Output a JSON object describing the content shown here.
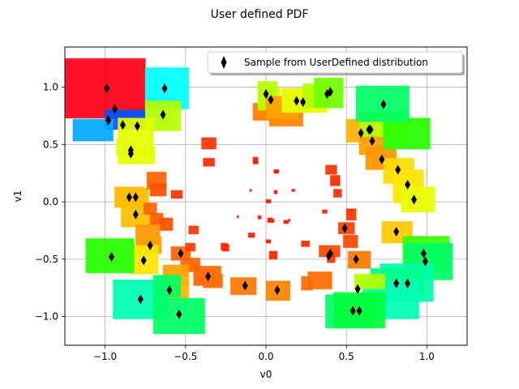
{
  "chart_data": {
    "type": "scatter",
    "title": "User defined PDF",
    "xlabel": "v0",
    "ylabel": "v1",
    "xlim": [
      -1.25,
      1.25
    ],
    "ylim": [
      -1.25,
      1.35
    ],
    "xticks": [
      -1.0,
      -0.5,
      0.0,
      0.5,
      1.0
    ],
    "yticks": [
      -1.0,
      -0.5,
      0.0,
      0.5,
      1.0
    ],
    "xtick_labels": [
      "−1.0",
      "−0.5",
      "0.0",
      "0.5",
      "1.0"
    ],
    "ytick_labels": [
      "−1.0",
      "−0.5",
      "0.0",
      "0.5",
      "1.0"
    ],
    "grid": true,
    "legend": {
      "placement": "top-right",
      "entries": [
        "Sample from UserDefined distribution"
      ]
    },
    "marker": {
      "shape": "thin-diamond",
      "color": "#000000"
    },
    "points": [
      {
        "x": -0.99,
        "y": 0.99
      },
      {
        "x": -0.94,
        "y": 0.81
      },
      {
        "x": -0.98,
        "y": 0.71
      },
      {
        "x": -0.89,
        "y": 0.67
      },
      {
        "x": -0.8,
        "y": 0.66
      },
      {
        "x": -0.84,
        "y": 0.45
      },
      {
        "x": -0.84,
        "y": 0.42
      },
      {
        "x": -0.63,
        "y": 0.99
      },
      {
        "x": -0.64,
        "y": 0.76
      },
      {
        "x": -0.85,
        "y": 0.04
      },
      {
        "x": -0.81,
        "y": 0.04
      },
      {
        "x": -0.81,
        "y": -0.11
      },
      {
        "x": -0.72,
        "y": -0.38
      },
      {
        "x": -0.76,
        "y": -0.51
      },
      {
        "x": -0.53,
        "y": -0.45
      },
      {
        "x": -0.6,
        "y": -0.77
      },
      {
        "x": -0.78,
        "y": -0.85
      },
      {
        "x": -0.54,
        "y": -0.98
      },
      {
        "x": -0.36,
        "y": -0.65
      },
      {
        "x": -0.13,
        "y": -0.73
      },
      {
        "x": 0.07,
        "y": -0.77
      },
      {
        "x": -0.96,
        "y": -0.48
      },
      {
        "x": 0.4,
        "y": -0.45
      },
      {
        "x": 0.39,
        "y": -0.47
      },
      {
        "x": 0.49,
        "y": -0.23
      },
      {
        "x": 0.56,
        "y": -0.5
      },
      {
        "x": 0.57,
        "y": -0.76
      },
      {
        "x": 0.54,
        "y": -0.95
      },
      {
        "x": 0.58,
        "y": -0.95
      },
      {
        "x": 0.81,
        "y": -0.71
      },
      {
        "x": 0.88,
        "y": -0.71
      },
      {
        "x": 0.98,
        "y": -0.45
      },
      {
        "x": 0.99,
        "y": -0.52
      },
      {
        "x": 0.81,
        "y": -0.26
      },
      {
        "x": 0.92,
        "y": 0.02
      },
      {
        "x": 0.88,
        "y": 0.15
      },
      {
        "x": 0.82,
        "y": 0.28
      },
      {
        "x": 0.72,
        "y": 0.37
      },
      {
        "x": 0.66,
        "y": 0.53
      },
      {
        "x": 0.59,
        "y": 0.6
      },
      {
        "x": 0.64,
        "y": 0.63
      },
      {
        "x": 0.65,
        "y": 0.63
      },
      {
        "x": 0.73,
        "y": 0.85
      },
      {
        "x": 0.0,
        "y": 0.94
      },
      {
        "x": 0.03,
        "y": 0.89
      },
      {
        "x": 0.19,
        "y": 0.88
      },
      {
        "x": 0.23,
        "y": 0.87
      },
      {
        "x": 0.38,
        "y": 0.94
      },
      {
        "x": 0.4,
        "y": 0.96
      }
    ],
    "patches": [
      {
        "x0": -1.25,
        "x1": -1.0,
        "y0": 0.73,
        "y1": 1.25,
        "color": "#ff0015"
      },
      {
        "x0": -1.0,
        "x1": -0.75,
        "y0": 0.73,
        "y1": 1.25,
        "color": "#ff0015"
      },
      {
        "x0": -1.0,
        "x1": -0.75,
        "y0": 0.63,
        "y1": 0.8,
        "color": "#0052ff"
      },
      {
        "x0": -1.2,
        "x1": -0.95,
        "y0": 0.53,
        "y1": 0.72,
        "color": "#00aaff"
      },
      {
        "x0": -0.75,
        "x1": -0.48,
        "y0": 0.81,
        "y1": 1.17,
        "color": "#00ffff"
      },
      {
        "x0": -0.75,
        "x1": -0.53,
        "y0": 0.62,
        "y1": 0.88,
        "color": "#b4ff00"
      },
      {
        "x0": -0.92,
        "x1": -0.7,
        "y0": 0.55,
        "y1": 0.73,
        "color": "#e6ff00"
      },
      {
        "x0": -0.93,
        "x1": -0.7,
        "y0": 0.4,
        "y1": 0.55,
        "color": "#e6ff00"
      },
      {
        "x0": -0.92,
        "x1": -0.69,
        "y0": 0.33,
        "y1": 0.48,
        "color": "#e6ff00"
      },
      {
        "x0": -0.94,
        "x1": -0.76,
        "y0": -0.05,
        "y1": 0.13,
        "color": "#ffb400"
      },
      {
        "x0": -0.92,
        "x1": -0.73,
        "y0": -0.05,
        "y1": 0.12,
        "color": "#ffbe00"
      },
      {
        "x0": -0.9,
        "x1": -0.72,
        "y0": -0.22,
        "y1": -0.02,
        "color": "#ffbe00"
      },
      {
        "x0": -0.74,
        "x1": -0.62,
        "y0": 0.11,
        "y1": 0.26,
        "color": "#ff6400"
      },
      {
        "x0": -0.72,
        "x1": -0.62,
        "y0": 0.05,
        "y1": 0.16,
        "color": "#ff5000"
      },
      {
        "x0": -0.59,
        "x1": -0.52,
        "y0": 0.03,
        "y1": 0.1,
        "color": "#ff3200"
      },
      {
        "x0": -0.76,
        "x1": -0.68,
        "y0": -0.11,
        "y1": -0.01,
        "color": "#ff6400"
      },
      {
        "x0": -0.72,
        "x1": -0.64,
        "y0": -0.2,
        "y1": -0.1,
        "color": "#ff5a00"
      },
      {
        "x0": -0.66,
        "x1": -0.58,
        "y0": -0.25,
        "y1": -0.14,
        "color": "#ff5000"
      },
      {
        "x0": -0.81,
        "x1": -0.66,
        "y0": -0.38,
        "y1": -0.2,
        "color": "#ff9600"
      },
      {
        "x0": -0.8,
        "x1": -0.65,
        "y0": -0.45,
        "y1": -0.3,
        "color": "#ffa000"
      },
      {
        "x0": -0.85,
        "x1": -0.67,
        "y0": -0.63,
        "y1": -0.38,
        "color": "#ffe600"
      },
      {
        "x0": -0.59,
        "x1": -0.47,
        "y0": -0.51,
        "y1": -0.39,
        "color": "#ff6400"
      },
      {
        "x0": -0.5,
        "x1": -0.44,
        "y0": -0.43,
        "y1": -0.36,
        "color": "#ff3c00"
      },
      {
        "x0": -0.48,
        "x1": -0.42,
        "y0": -0.28,
        "y1": -0.21,
        "color": "#ff3200"
      },
      {
        "x0": -0.4,
        "x1": -0.31,
        "y0": 0.46,
        "y1": 0.56,
        "color": "#ff3200"
      },
      {
        "x0": -0.39,
        "x1": -0.32,
        "y0": 0.31,
        "y1": 0.38,
        "color": "#ff2800"
      },
      {
        "x0": -0.08,
        "x1": -0.05,
        "y0": 0.33,
        "y1": 0.37,
        "color": "#ff1e00"
      },
      {
        "x0": -0.27,
        "x1": -0.23,
        "y0": -0.43,
        "y1": -0.37,
        "color": "#ff2300"
      },
      {
        "x0": -0.53,
        "x1": -0.41,
        "y0": -0.61,
        "y1": -0.49,
        "color": "#ff6400"
      },
      {
        "x0": -0.64,
        "x1": -0.48,
        "y0": -0.73,
        "y1": -0.55,
        "color": "#ffa000"
      },
      {
        "x0": -0.64,
        "x1": -0.48,
        "y0": -0.85,
        "y1": -0.65,
        "color": "#ffb400"
      },
      {
        "x0": -0.45,
        "x1": -0.28,
        "y0": -0.73,
        "y1": -0.56,
        "color": "#ff6400"
      },
      {
        "x0": -0.39,
        "x1": -0.27,
        "y0": -0.75,
        "y1": -0.63,
        "color": "#ff6e00"
      },
      {
        "x0": -0.22,
        "x1": -0.06,
        "y0": -0.81,
        "y1": -0.66,
        "color": "#ff7800"
      },
      {
        "x0": 0.0,
        "x1": 0.15,
        "y0": -0.86,
        "y1": -0.69,
        "color": "#ff8200"
      },
      {
        "x0": 0.02,
        "x1": 0.07,
        "y0": -0.5,
        "y1": -0.43,
        "color": "#ff2300"
      },
      {
        "x0": 0.0,
        "x1": 0.03,
        "y0": -0.36,
        "y1": -0.33,
        "color": "#ff1900"
      },
      {
        "x0": 0.22,
        "x1": 0.29,
        "y0": -0.77,
        "y1": -0.65,
        "color": "#ff6e00"
      },
      {
        "x0": 0.26,
        "x1": 0.41,
        "y0": -0.76,
        "y1": -0.61,
        "color": "#ff6e00"
      },
      {
        "x0": 0.33,
        "x1": 0.46,
        "y0": -0.48,
        "y1": -0.38,
        "color": "#ff4600"
      },
      {
        "x0": 0.38,
        "x1": 0.43,
        "y0": -0.53,
        "y1": -0.45,
        "color": "#ff3200"
      },
      {
        "x0": 0.48,
        "x1": 0.57,
        "y0": -0.4,
        "y1": -0.29,
        "color": "#ff4600"
      },
      {
        "x0": 0.45,
        "x1": 0.55,
        "y0": -0.28,
        "y1": -0.18,
        "color": "#ff3c00"
      },
      {
        "x0": 0.5,
        "x1": 0.56,
        "y0": -0.16,
        "y1": -0.06,
        "color": "#ff3200"
      },
      {
        "x0": 0.51,
        "x1": 0.65,
        "y0": -0.58,
        "y1": -0.43,
        "color": "#ff7800"
      },
      {
        "x0": 0.37,
        "x1": 0.44,
        "y0": 0.24,
        "y1": 0.32,
        "color": "#ff3200"
      },
      {
        "x0": 0.4,
        "x1": 0.46,
        "y0": 0.14,
        "y1": 0.23,
        "color": "#ff2800"
      },
      {
        "x0": 0.42,
        "x1": 0.47,
        "y0": 0.04,
        "y1": 0.11,
        "color": "#ff2800"
      },
      {
        "x0": 0.35,
        "x1": 0.38,
        "y0": -0.1,
        "y1": -0.07,
        "color": "#ff1e00"
      },
      {
        "x0": 0.16,
        "x1": 0.18,
        "y0": 0.09,
        "y1": 0.11,
        "color": "#ff1400"
      },
      {
        "x0": 0.0,
        "x1": 0.03,
        "y0": -0.01,
        "y1": 0.02,
        "color": "#ff1400"
      },
      {
        "x0": 0.05,
        "x1": 0.08,
        "y0": 0.25,
        "y1": 0.28,
        "color": "#ff1400"
      },
      {
        "x0": 0.05,
        "x1": 0.07,
        "y0": 0.07,
        "y1": 0.1,
        "color": "#ff1400"
      },
      {
        "x0": 0.01,
        "x1": 0.04,
        "y0": -0.18,
        "y1": -0.14,
        "color": "#ff1400"
      },
      {
        "x0": -0.05,
        "x1": -0.03,
        "y0": -0.15,
        "y1": -0.12,
        "color": "#ff1400"
      },
      {
        "x0": 0.11,
        "x1": 0.14,
        "y0": -0.19,
        "y1": -0.16,
        "color": "#ff1400"
      },
      {
        "x0": -0.11,
        "x1": -0.07,
        "y0": -0.31,
        "y1": -0.27,
        "color": "#ff1e00"
      },
      {
        "x0": -0.28,
        "x1": -0.24,
        "y0": -0.42,
        "y1": -0.36,
        "color": "#ff2800"
      },
      {
        "x0": -0.1,
        "x1": -0.09,
        "y0": 0.09,
        "y1": 0.11,
        "color": "#ff1400"
      },
      {
        "x0": 0.04,
        "x1": 0.05,
        "y0": -0.18,
        "y1": -0.15,
        "color": "#ff1400"
      },
      {
        "x0": 0.22,
        "x1": 0.27,
        "y0": -0.39,
        "y1": -0.34,
        "color": "#ff2300"
      },
      {
        "x0": 0.14,
        "x1": 0.15,
        "y0": -0.17,
        "y1": -0.15,
        "color": "#ff1400"
      },
      {
        "x0": -0.18,
        "x1": -0.17,
        "y0": -0.14,
        "y1": -0.12,
        "color": "#ff1400"
      },
      {
        "x0": -0.08,
        "x1": -0.05,
        "y0": 0.34,
        "y1": 0.39,
        "color": "#ff1e00"
      },
      {
        "x0": 0.05,
        "x1": 0.07,
        "y0": 0.25,
        "y1": 0.28,
        "color": "#ff1400"
      },
      {
        "x0": -0.08,
        "x1": 0.1,
        "y0": 0.71,
        "y1": 0.86,
        "color": "#ff7800"
      },
      {
        "x0": 0.02,
        "x1": 0.23,
        "y0": 0.66,
        "y1": 0.84,
        "color": "#ff8200"
      },
      {
        "x0": -0.05,
        "x1": 0.09,
        "y0": 0.8,
        "y1": 0.99,
        "color": "#e6ff00"
      },
      {
        "x0": -0.05,
        "x1": 0.07,
        "y0": 0.8,
        "y1": 1.05,
        "color": "#b4ff00"
      },
      {
        "x0": 0.0,
        "x1": 0.2,
        "y0": 0.72,
        "y1": 0.92,
        "color": "#ffa000"
      },
      {
        "x0": 0.1,
        "x1": 0.3,
        "y0": 0.78,
        "y1": 0.99,
        "color": "#ffdc00"
      },
      {
        "x0": 0.1,
        "x1": 0.38,
        "y0": 0.78,
        "y1": 0.98,
        "color": "#e6ff00"
      },
      {
        "x0": 0.23,
        "x1": 0.4,
        "y0": 0.82,
        "y1": 1.03,
        "color": "#b4ff00"
      },
      {
        "x0": 0.3,
        "x1": 0.48,
        "y0": 0.82,
        "y1": 1.08,
        "color": "#6eff00"
      },
      {
        "x0": 0.5,
        "x1": 0.68,
        "y0": 0.52,
        "y1": 0.72,
        "color": "#ffb400"
      },
      {
        "x0": 0.58,
        "x1": 0.74,
        "y0": 0.41,
        "y1": 0.62,
        "color": "#ffa000"
      },
      {
        "x0": 0.62,
        "x1": 0.81,
        "y0": 0.28,
        "y1": 0.48,
        "color": "#ff9600"
      },
      {
        "x0": 0.58,
        "x1": 0.88,
        "y0": 0.57,
        "y1": 0.79,
        "color": "#b4ff00"
      },
      {
        "x0": 0.73,
        "x1": 1.02,
        "y0": 0.46,
        "y1": 0.73,
        "color": "#28ff00"
      },
      {
        "x0": 0.56,
        "x1": 0.89,
        "y0": 0.7,
        "y1": 1.01,
        "color": "#00ff64"
      },
      {
        "x0": 0.73,
        "x1": 0.92,
        "y0": 0.16,
        "y1": 0.38,
        "color": "#ffdc00"
      },
      {
        "x0": 0.79,
        "x1": 0.98,
        "y0": -0.01,
        "y1": 0.28,
        "color": "#ffe600"
      },
      {
        "x0": 0.84,
        "x1": 1.05,
        "y0": -0.09,
        "y1": 0.13,
        "color": "#e6ff00"
      },
      {
        "x0": 0.72,
        "x1": 0.91,
        "y0": -0.36,
        "y1": -0.17,
        "color": "#ffc800"
      },
      {
        "x0": 0.85,
        "x1": 1.14,
        "y0": -0.61,
        "y1": -0.3,
        "color": "#3cff00"
      },
      {
        "x0": 0.86,
        "x1": 1.16,
        "y0": -0.68,
        "y1": -0.36,
        "color": "#00ff64"
      },
      {
        "x0": 0.71,
        "x1": 1.04,
        "y0": -0.87,
        "y1": -0.54,
        "color": "#00ffaa"
      },
      {
        "x0": 0.65,
        "x1": 0.98,
        "y0": -0.81,
        "y1": -0.58,
        "color": "#00ff8c"
      },
      {
        "x0": 0.6,
        "x1": 0.95,
        "y0": -1.02,
        "y1": -0.68,
        "color": "#00ffb4"
      },
      {
        "x0": 0.37,
        "x1": 0.67,
        "y0": -1.1,
        "y1": -0.81,
        "color": "#00ff64"
      },
      {
        "x0": 0.42,
        "x1": 0.74,
        "y0": -1.1,
        "y1": -0.79,
        "color": "#00ff3c"
      },
      {
        "x0": 0.55,
        "x1": 0.74,
        "y0": -0.76,
        "y1": -0.63,
        "color": "#b4ff00"
      },
      {
        "x0": -1.12,
        "x1": -0.82,
        "y0": -0.62,
        "y1": -0.32,
        "color": "#28ff00"
      },
      {
        "x0": -0.95,
        "x1": -0.61,
        "y0": -1.02,
        "y1": -0.68,
        "color": "#00ffb4"
      },
      {
        "x0": -0.7,
        "x1": -0.53,
        "y0": -0.83,
        "y1": -0.64,
        "color": "#00ff64"
      },
      {
        "x0": -0.7,
        "x1": -0.38,
        "y0": -1.15,
        "y1": -0.84,
        "color": "#00ff64"
      }
    ]
  }
}
